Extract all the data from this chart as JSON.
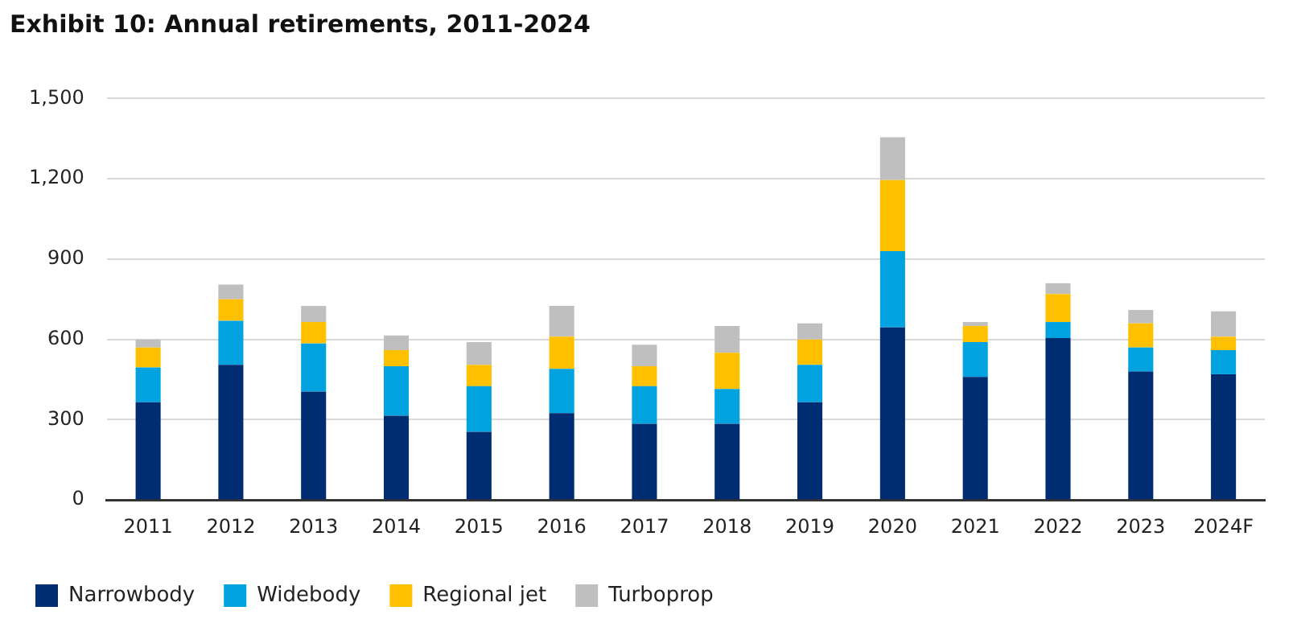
{
  "chart_data": {
    "type": "bar",
    "title": "Exhibit 10: Annual retirements, 2011-2024",
    "stacked": true,
    "categories": [
      "2011",
      "2012",
      "2013",
      "2014",
      "2015",
      "2016",
      "2017",
      "2018",
      "2019",
      "2020",
      "2021",
      "2022",
      "2023",
      "2024F"
    ],
    "series": [
      {
        "name": "Narrowbody",
        "color": "#002d72",
        "values": [
          365,
          505,
          405,
          315,
          255,
          325,
          285,
          285,
          365,
          645,
          460,
          605,
          480,
          470
        ]
      },
      {
        "name": "Widebody",
        "color": "#00a3e0",
        "values": [
          130,
          165,
          180,
          185,
          170,
          165,
          140,
          130,
          140,
          285,
          130,
          60,
          90,
          90
        ]
      },
      {
        "name": "Regional jet",
        "color": "#ffc000",
        "values": [
          75,
          80,
          80,
          60,
          80,
          120,
          75,
          135,
          95,
          265,
          60,
          105,
          90,
          50
        ]
      },
      {
        "name": "Turboprop",
        "color": "#bfbfbf",
        "values": [
          30,
          55,
          60,
          55,
          85,
          115,
          80,
          100,
          60,
          160,
          15,
          40,
          50,
          95
        ]
      }
    ],
    "ylim": [
      0,
      1500
    ],
    "yticks": [
      {
        "value": 0,
        "label": "0"
      },
      {
        "value": 300,
        "label": "300"
      },
      {
        "value": 600,
        "label": "600"
      },
      {
        "value": 900,
        "label": "900"
      },
      {
        "value": 1200,
        "label": "1,200"
      },
      {
        "value": 1500,
        "label": "1,500"
      }
    ],
    "grid": "y",
    "legend": "bottom left"
  }
}
